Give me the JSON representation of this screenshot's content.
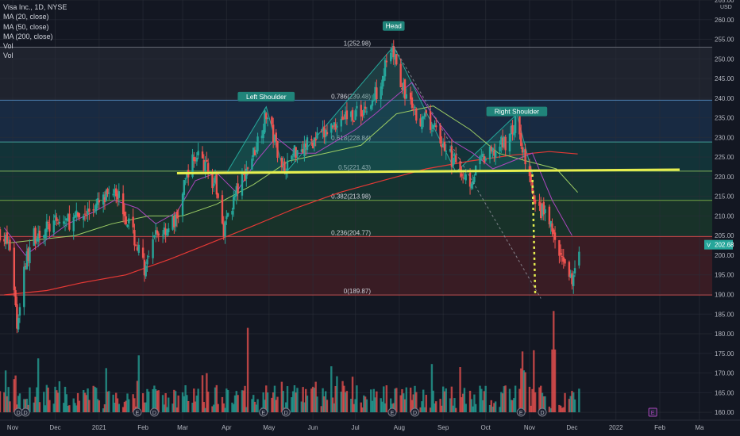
{
  "header": {
    "symbol_line": "Visa Inc., 1D, NYSE",
    "indicators": [
      "MA (20, close)",
      "MA (50, close)",
      "MA (200, close)",
      "Vol",
      "Vol"
    ]
  },
  "colors": {
    "background": "#131722",
    "up": "#26a69a",
    "down": "#ef5350",
    "ma20": "#ab47bc",
    "ma50": "#9ccc65",
    "ma200": "#e53935",
    "neckline": "#e6ee4f",
    "fib_label": "#d1d4dc",
    "pattern_fill": "#1e6f66",
    "annotation_bg": "#20847a"
  },
  "chart_data": {
    "type": "candlestick",
    "currency": "USD",
    "y_axis": {
      "range": [
        158,
        265
      ],
      "ticks": [
        160,
        165,
        170,
        175,
        180,
        185,
        190,
        195,
        200,
        205,
        210,
        215,
        220,
        225,
        230,
        235,
        240,
        245,
        250,
        255,
        260,
        265
      ],
      "tick_labels": [
        "160.00",
        "165.00",
        "170.00",
        "175.00",
        "180.00",
        "185.00",
        "190.00",
        "195.00",
        "200.00",
        "205.00",
        "210.00",
        "215.00",
        "220.00",
        "225.00",
        "230.00",
        "235.00",
        "240.00",
        "245.00",
        "250.00",
        "255.00",
        "260.00",
        "265.00"
      ]
    },
    "x_axis": {
      "range": [
        "2020-10-23",
        "2022-03-10"
      ],
      "ticks": [
        {
          "date": "2020-11-01",
          "label": "Nov"
        },
        {
          "date": "2020-12-01",
          "label": "Dec"
        },
        {
          "date": "2021-01-01",
          "label": "2021"
        },
        {
          "date": "2021-02-01",
          "label": "Feb"
        },
        {
          "date": "2021-03-01",
          "label": "Mar"
        },
        {
          "date": "2021-04-01",
          "label": "Apr"
        },
        {
          "date": "2021-05-01",
          "label": "May"
        },
        {
          "date": "2021-06-01",
          "label": "Jun"
        },
        {
          "date": "2021-07-01",
          "label": "Jul"
        },
        {
          "date": "2021-08-01",
          "label": "Aug"
        },
        {
          "date": "2021-09-01",
          "label": "Sep"
        },
        {
          "date": "2021-10-01",
          "label": "Oct"
        },
        {
          "date": "2021-11-01",
          "label": "Nov"
        },
        {
          "date": "2021-12-01",
          "label": "Dec"
        },
        {
          "date": "2022-01-01",
          "label": "2022"
        },
        {
          "date": "2022-02-01",
          "label": "Feb"
        },
        {
          "date": "2022-03-01",
          "label": "Ma"
        }
      ]
    },
    "last_price": {
      "symbol": "V",
      "label": "202.68",
      "value": 202.68
    },
    "fibonacci": [
      {
        "ratio": 1,
        "value": 252.98,
        "label": "1(252.98)",
        "band_color": "#2a2e39"
      },
      {
        "ratio": 0.786,
        "value": 239.48,
        "label": "0.786(239.48)",
        "band_color": "#1d3a5c"
      },
      {
        "ratio": 0.618,
        "value": 228.84,
        "label": "0.618(228.84)",
        "band_color": "#134a4a"
      },
      {
        "ratio": 0.5,
        "value": 221.43,
        "label": "0.5(221.43)",
        "band_color": "#164a3e"
      },
      {
        "ratio": 0.382,
        "value": 213.98,
        "label": "0.382(213.98)",
        "band_color": "#1e4830"
      },
      {
        "ratio": 0.236,
        "value": 204.77,
        "label": "0.236(204.77)",
        "band_color": "#5a2026"
      },
      {
        "ratio": 0,
        "value": 189.87,
        "label": "0(189.87)",
        "band_color": "#5a2026"
      }
    ],
    "annotations": [
      {
        "text": "Left Shoulder",
        "date": "2021-04-29",
        "value": 240.4
      },
      {
        "text": "Head",
        "date": "2021-07-28",
        "value": 258.4
      },
      {
        "text": "Right Shoulder",
        "date": "2021-10-23",
        "value": 236.6
      }
    ],
    "pattern": [
      {
        "date": "2021-04-01",
        "value": 220.9
      },
      {
        "date": "2021-04-29",
        "value": 237.8
      },
      {
        "date": "2021-05-12",
        "value": 220.7
      },
      {
        "date": "2021-07-28",
        "value": 253.2
      },
      {
        "date": "2021-09-10",
        "value": 221.2
      },
      {
        "date": "2021-10-23",
        "value": 235.9
      },
      {
        "date": "2021-11-03",
        "value": 220.8
      }
    ],
    "neckline": [
      {
        "date": "2021-02-25",
        "value": 220.9
      },
      {
        "date": "2022-02-15",
        "value": 221.8
      }
    ],
    "target_line": [
      {
        "date": "2021-11-03",
        "value": 220.6
      },
      {
        "date": "2021-11-05",
        "value": 190.2
      }
    ],
    "trend_line": [
      {
        "date": "2021-07-28",
        "value": 253.2
      },
      {
        "date": "2021-11-09",
        "value": 189.0
      }
    ],
    "ma20": [
      [
        "2020-10-26",
        207
      ],
      [
        "2020-11-10",
        200
      ],
      [
        "2020-11-25",
        204
      ],
      [
        "2020-12-10",
        208
      ],
      [
        "2020-12-28",
        211
      ],
      [
        "2021-01-12",
        214
      ],
      [
        "2021-01-28",
        212
      ],
      [
        "2021-02-10",
        208
      ],
      [
        "2021-02-25",
        211
      ],
      [
        "2021-03-10",
        219
      ],
      [
        "2021-03-25",
        221
      ],
      [
        "2021-04-08",
        216
      ],
      [
        "2021-04-22",
        224
      ],
      [
        "2021-05-06",
        230
      ],
      [
        "2021-05-20",
        226
      ],
      [
        "2021-06-03",
        226
      ],
      [
        "2021-06-17",
        229
      ],
      [
        "2021-07-01",
        232
      ],
      [
        "2021-07-15",
        236
      ],
      [
        "2021-07-28",
        240
      ],
      [
        "2021-08-10",
        244
      ],
      [
        "2021-08-24",
        236
      ],
      [
        "2021-09-08",
        229
      ],
      [
        "2021-09-22",
        226
      ],
      [
        "2021-10-06",
        222
      ],
      [
        "2021-10-20",
        224
      ],
      [
        "2021-11-03",
        226
      ],
      [
        "2021-11-17",
        214
      ],
      [
        "2021-12-01",
        205
      ]
    ],
    "ma50": [
      [
        "2020-10-26",
        203
      ],
      [
        "2020-11-20",
        204
      ],
      [
        "2020-12-15",
        205
      ],
      [
        "2021-01-10",
        208
      ],
      [
        "2021-02-05",
        210
      ],
      [
        "2021-03-01",
        210
      ],
      [
        "2021-03-25",
        213
      ],
      [
        "2021-04-20",
        218
      ],
      [
        "2021-05-15",
        224
      ],
      [
        "2021-06-10",
        226
      ],
      [
        "2021-07-05",
        228
      ],
      [
        "2021-07-30",
        236
      ],
      [
        "2021-08-25",
        238
      ],
      [
        "2021-09-20",
        232
      ],
      [
        "2021-10-10",
        226
      ],
      [
        "2021-10-30",
        224
      ],
      [
        "2021-11-20",
        222
      ],
      [
        "2021-12-05",
        216
      ]
    ],
    "ma200": [
      [
        "2020-10-26",
        189.9
      ],
      [
        "2020-11-25",
        191
      ],
      [
        "2020-12-20",
        193
      ],
      [
        "2021-01-20",
        195
      ],
      [
        "2021-02-20",
        199
      ],
      [
        "2021-03-20",
        203
      ],
      [
        "2021-04-20",
        207.5
      ],
      [
        "2021-05-20",
        212
      ],
      [
        "2021-06-20",
        216
      ],
      [
        "2021-07-20",
        219
      ],
      [
        "2021-08-20",
        222
      ],
      [
        "2021-09-20",
        224
      ],
      [
        "2021-10-20",
        225.5
      ],
      [
        "2021-11-15",
        226.4
      ],
      [
        "2021-12-05",
        225.8
      ]
    ],
    "events_dividend": [
      "2020-11-05",
      "2020-11-10",
      "2021-02-09",
      "2021-05-13",
      "2021-08-12",
      "2021-11-10"
    ],
    "events_earnings": [
      "2021-01-28",
      "2021-04-27",
      "2021-07-27",
      "2021-10-26",
      "2022-01-27"
    ],
    "events_earnings_future": [
      "2022-01-27"
    ],
    "volume": {
      "base_value": 160,
      "scale_max": 186
    }
  }
}
